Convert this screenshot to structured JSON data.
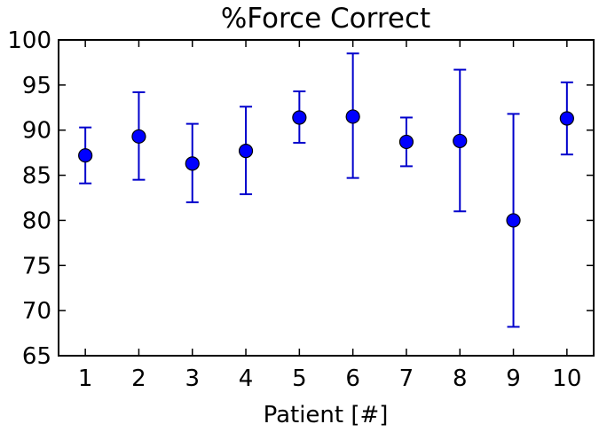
{
  "chart_data": {
    "type": "scatter",
    "title": "%Force Correct",
    "xlabel": "Patient [#]",
    "ylabel": "",
    "xlim": [
      0.5,
      10.5
    ],
    "ylim": [
      65,
      100
    ],
    "x_ticks": [
      "1",
      "2",
      "3",
      "4",
      "5",
      "6",
      "7",
      "8",
      "9",
      "10"
    ],
    "y_ticks": [
      "65",
      "70",
      "75",
      "80",
      "85",
      "90",
      "95",
      "100"
    ],
    "grid": false,
    "marker_color": "#0000ff",
    "errorbar_color": "#0000cc",
    "series": [
      {
        "x": [
          1,
          2,
          3,
          4,
          5,
          6,
          7,
          8,
          9,
          10
        ],
        "y": [
          87.2,
          89.3,
          86.3,
          87.7,
          91.4,
          91.5,
          88.7,
          88.8,
          80.0,
          91.3
        ],
        "err_low": [
          84.1,
          84.5,
          82.0,
          82.9,
          88.6,
          84.7,
          86.0,
          81.0,
          68.2,
          87.3
        ],
        "err_high": [
          90.3,
          94.2,
          90.7,
          92.6,
          94.3,
          98.5,
          91.4,
          96.7,
          91.8,
          95.3
        ]
      }
    ]
  }
}
